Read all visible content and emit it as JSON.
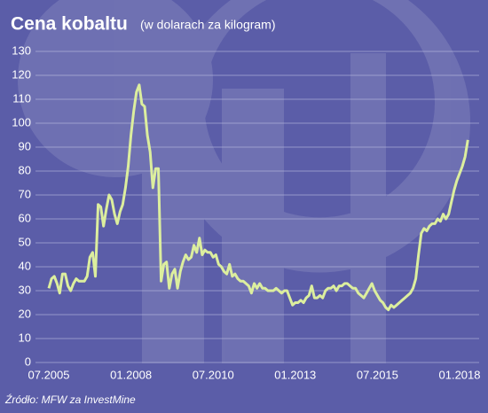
{
  "chart_data": {
    "type": "line",
    "title": "Cena kobaltu",
    "subtitle": "(w dolarach za kilogram)",
    "source": "Źródło: MFW za InvestMine",
    "categories": [
      "07.2005",
      null,
      null,
      null,
      null,
      null,
      null,
      null,
      null,
      null,
      null,
      null,
      null,
      null,
      null,
      null,
      null,
      null,
      null,
      null,
      null,
      null,
      null,
      null,
      null,
      null,
      null,
      null,
      null,
      null,
      "01.2008",
      null,
      null,
      null,
      null,
      null,
      null,
      null,
      null,
      null,
      null,
      null,
      null,
      null,
      null,
      null,
      null,
      null,
      null,
      null,
      null,
      null,
      null,
      null,
      null,
      null,
      null,
      null,
      null,
      null,
      "07.2010",
      null,
      null,
      null,
      null,
      null,
      null,
      null,
      null,
      null,
      null,
      null,
      null,
      null,
      null,
      null,
      null,
      null,
      null,
      null,
      null,
      null,
      null,
      null,
      null,
      null,
      null,
      null,
      null,
      null,
      "01.2013",
      null,
      null,
      null,
      null,
      null,
      null,
      null,
      null,
      null,
      null,
      null,
      null,
      null,
      null,
      null,
      null,
      null,
      null,
      null,
      null,
      null,
      null,
      null,
      null,
      null,
      null,
      null,
      null,
      null,
      "07.2015",
      null,
      null,
      null,
      null,
      null,
      null,
      null,
      null,
      null,
      null,
      null,
      null,
      null,
      null,
      null,
      null,
      null,
      null,
      null,
      null,
      null,
      null,
      null,
      null,
      null,
      null,
      null,
      null,
      null,
      "01.2018",
      null,
      null,
      null
    ],
    "series": [
      {
        "name": "Cena kobaltu",
        "color": "#dcee9e",
        "values": [
          31,
          35,
          36,
          33,
          29,
          37,
          37,
          32,
          30,
          33,
          35,
          34,
          34,
          34,
          36,
          44,
          46,
          36,
          66,
          65,
          57,
          64,
          70,
          68,
          62,
          58,
          63,
          66,
          73,
          82,
          95,
          105,
          113,
          116,
          108,
          107,
          95,
          88,
          73,
          81,
          81,
          34,
          41,
          42,
          31,
          37,
          39,
          31,
          38,
          42,
          45,
          43,
          44,
          49,
          46,
          52,
          45,
          47,
          46,
          46,
          44,
          45,
          41,
          40,
          38,
          37,
          41,
          36,
          37,
          35,
          34,
          34,
          33,
          32,
          29,
          33,
          31,
          33,
          31,
          31,
          30,
          30,
          30,
          31,
          30,
          29,
          30,
          30,
          27,
          24,
          25,
          25,
          26,
          25,
          27,
          28,
          32,
          27,
          27,
          28,
          27,
          30,
          31,
          31,
          32,
          30,
          32,
          32,
          33,
          33,
          32,
          31,
          31,
          29,
          28,
          27,
          29,
          31,
          33,
          30,
          28,
          26,
          25,
          23,
          22,
          24,
          23,
          24,
          25,
          26,
          27,
          28,
          29,
          31,
          35,
          45,
          54,
          56,
          55,
          57,
          58,
          58,
          60,
          59,
          62,
          60,
          62,
          67,
          72,
          76,
          79,
          82,
          86,
          93
        ]
      }
    ],
    "ylim": [
      0,
      130
    ],
    "yticks": [
      0,
      10,
      20,
      30,
      40,
      50,
      60,
      70,
      80,
      90,
      100,
      110,
      120,
      130
    ],
    "grid": true
  }
}
